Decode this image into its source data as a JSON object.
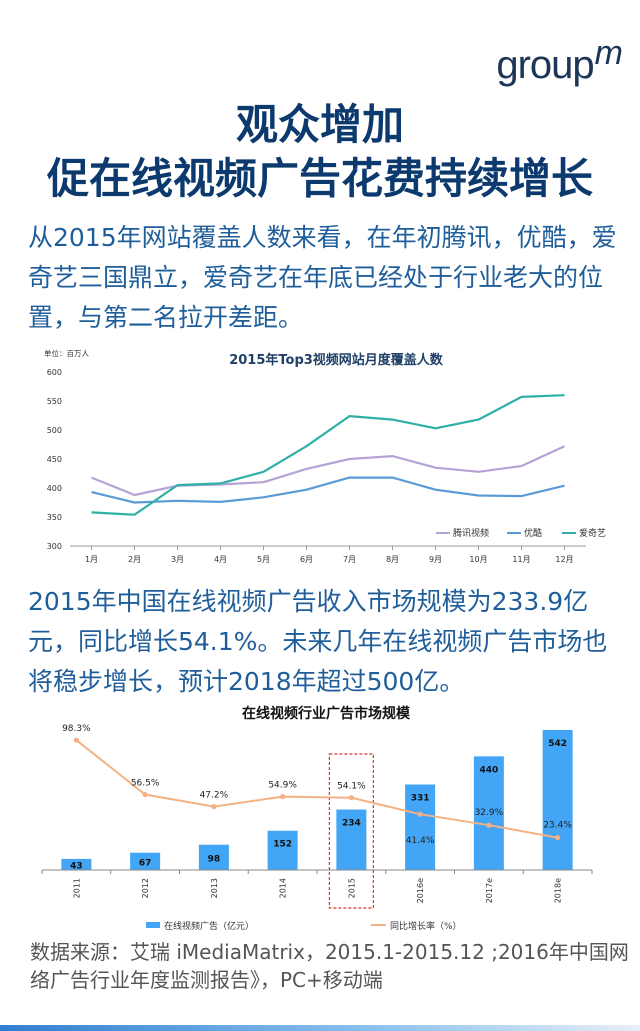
{
  "logo": {
    "main": "group",
    "sup": "m"
  },
  "title_line1": "观众增加",
  "title_line2": "促在线视频广告花费持续增长",
  "paragraph1": "从2015年网站覆盖人数来看，在年初腾讯，优酷，爱奇艺三国鼎立，爱奇艺在年底已经处于行业老大的位置，与第二名拉开差距。",
  "paragraph2": "2015年中国在线视频广告收入市场规模为233.9亿元，同比增长54.1%。未来几年在线视频广告市场也将稳步增长，预计2018年超过500亿。",
  "source": "数据来源：艾瑞 iMediaMatrix，2015.1-2015.12 ;2016年中国网络广告行业年度监测报告》，PC+移动端",
  "chart_data": [
    {
      "type": "line",
      "title": "2015年Top3视频网站月度覆盖人数",
      "unit_label": "单位：百万人",
      "categories": [
        "1月",
        "2月",
        "3月",
        "4月",
        "5月",
        "6月",
        "7月",
        "8月",
        "9月",
        "10月",
        "11月",
        "12月"
      ],
      "ylim": [
        300,
        600
      ],
      "yticks": [
        300,
        350,
        400,
        450,
        500,
        550,
        600
      ],
      "series": [
        {
          "name": "腾讯视频",
          "color": "#b6a3d6",
          "values": [
            418,
            388,
            404,
            406,
            410,
            433,
            450,
            455,
            435,
            428,
            438,
            472
          ]
        },
        {
          "name": "优酷",
          "color": "#5b9bd5",
          "values": [
            393,
            375,
            378,
            376,
            384,
            397,
            418,
            418,
            397,
            387,
            386,
            404
          ]
        },
        {
          "name": "爱奇艺",
          "color": "#2eb0a6",
          "values": [
            358,
            354,
            405,
            408,
            428,
            472,
            524,
            518,
            503,
            518,
            557,
            560
          ]
        }
      ]
    },
    {
      "type": "bar",
      "title": "在线视频行业广告市场规模",
      "categories": [
        "2011",
        "2012",
        "2013",
        "2014",
        "2015",
        "2016e",
        "2017e",
        "2018e"
      ],
      "series": [
        {
          "name": "在线视频广告（亿元）",
          "color": "#42a5f5",
          "values": [
            43,
            67,
            98,
            152,
            234,
            331,
            440,
            542
          ]
        },
        {
          "name": "同比增长率（%）",
          "color": "#f4b183",
          "values": [
            98.3,
            56.5,
            47.2,
            54.9,
            54.1,
            41.4,
            32.9,
            23.4
          ],
          "labels": [
            "98.3%",
            "56.5%",
            "47.2%",
            "54.9%",
            "54.1%",
            "41.4%",
            "32.9%",
            "23.4%"
          ]
        }
      ],
      "highlight": "2015"
    }
  ]
}
